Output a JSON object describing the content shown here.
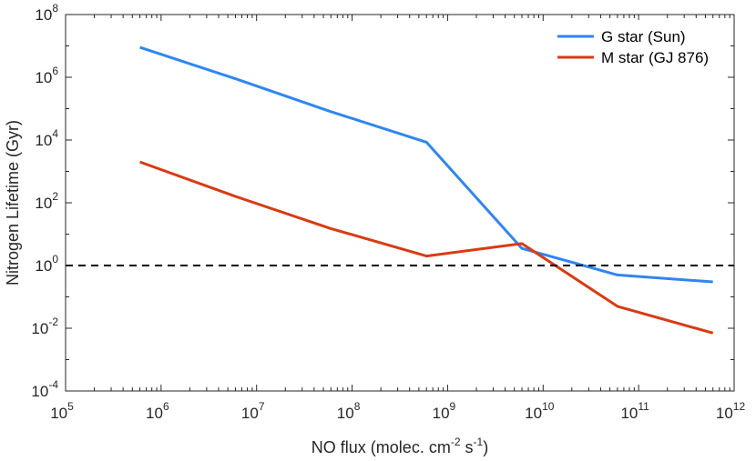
{
  "chart_data": {
    "type": "line",
    "x_scale": "log",
    "y_scale": "log",
    "xlabel": {
      "prefix": "NO flux (molec. cm",
      "exp1": "-2",
      "mid": " s",
      "exp2": "-1",
      "suffix": ")"
    },
    "ylabel": "Nitrogen Lifetime (Gyr)",
    "xlim": [
      100000,
      1000000000000
    ],
    "ylim": [
      0.0001,
      100000000
    ],
    "x_ticks": [
      {
        "base": "10",
        "exp": "5",
        "value": 100000
      },
      {
        "base": "10",
        "exp": "6",
        "value": 1000000
      },
      {
        "base": "10",
        "exp": "7",
        "value": 10000000
      },
      {
        "base": "10",
        "exp": "8",
        "value": 100000000
      },
      {
        "base": "10",
        "exp": "9",
        "value": 1000000000
      },
      {
        "base": "10",
        "exp": "10",
        "value": 10000000000
      },
      {
        "base": "10",
        "exp": "11",
        "value": 100000000000
      },
      {
        "base": "10",
        "exp": "12",
        "value": 1000000000000
      }
    ],
    "y_ticks": [
      {
        "base": "10",
        "exp": "-4",
        "value": 0.0001
      },
      {
        "base": "10",
        "exp": "-2",
        "value": 0.01
      },
      {
        "base": "10",
        "exp": "0",
        "value": 1
      },
      {
        "base": "10",
        "exp": "2",
        "value": 100
      },
      {
        "base": "10",
        "exp": "4",
        "value": 10000
      },
      {
        "base": "10",
        "exp": "6",
        "value": 1000000
      },
      {
        "base": "10",
        "exp": "8",
        "value": 100000000
      }
    ],
    "series": [
      {
        "name": "G star (Sun)",
        "color": "#2f86f0",
        "x": [
          600000,
          6000000,
          60000000,
          600000000,
          6000000000,
          60000000000,
          600000000000
        ],
        "y": [
          9000000,
          900000,
          80000,
          8500,
          3.5,
          0.5,
          0.3
        ]
      },
      {
        "name": "M star (GJ 876)",
        "color": "#d83b12",
        "x": [
          600000,
          6000000,
          60000000,
          600000000,
          6000000000,
          60000000000,
          600000000000
        ],
        "y": [
          2000,
          160,
          15,
          2,
          5,
          0.05,
          0.007
        ]
      }
    ],
    "reference_line": {
      "y": 1,
      "style": "dashed",
      "color": "#000000"
    },
    "legend": {
      "position": "top-right"
    },
    "grid": false
  }
}
